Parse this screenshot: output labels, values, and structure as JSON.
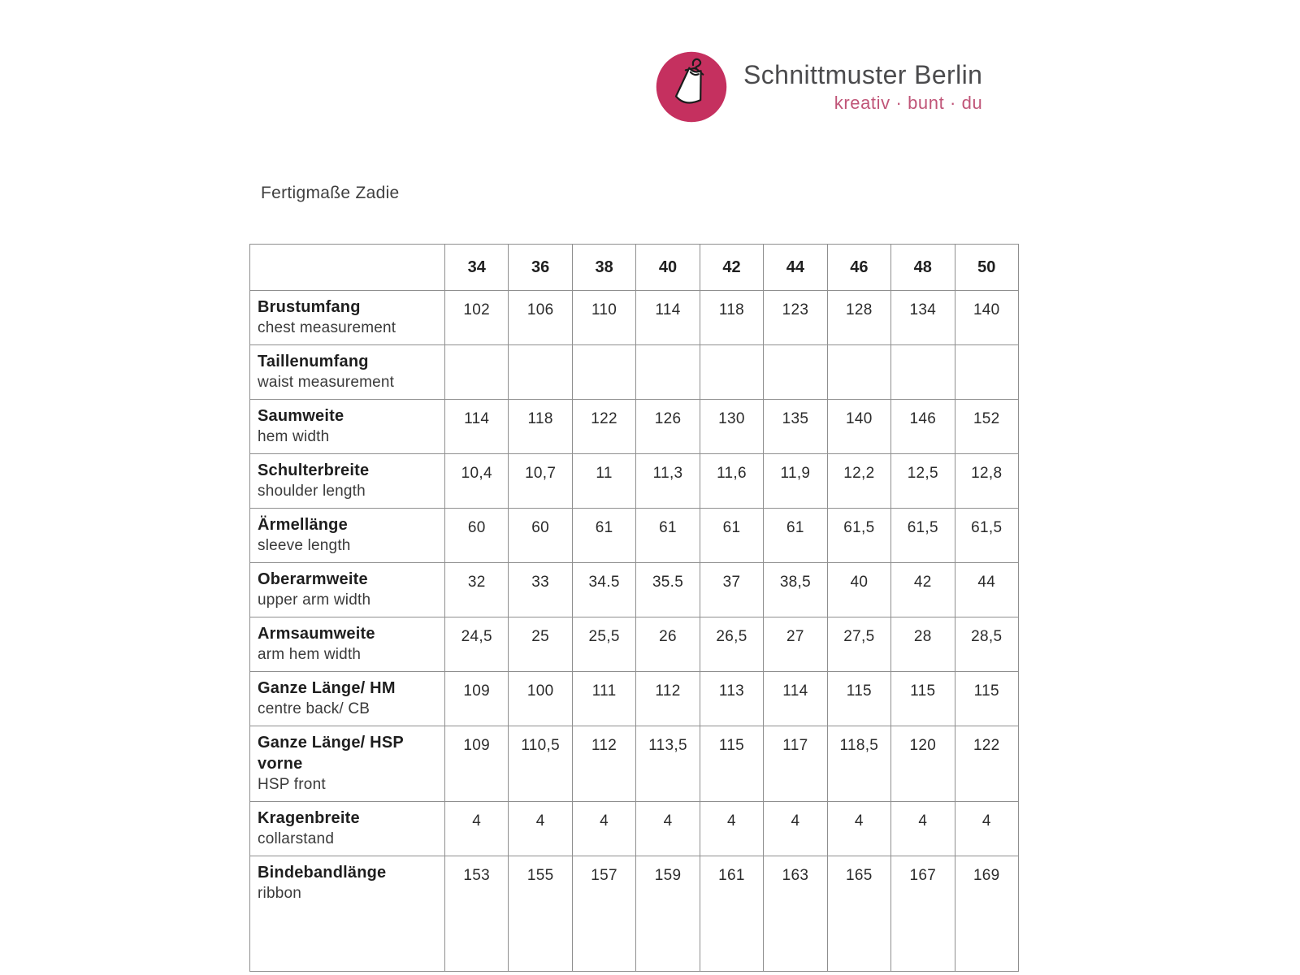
{
  "brand": {
    "name": "Schnittmuster Berlin",
    "tagline": "kreativ · bunt · du",
    "colors": {
      "logo_circle": "#c5305f",
      "tagline_text": "#c05578",
      "name_text": "#4b4b4d"
    }
  },
  "page_title": "Fertigmaße Zadie",
  "size_table": {
    "sizes": [
      "34",
      "36",
      "38",
      "40",
      "42",
      "44",
      "46",
      "48",
      "50"
    ],
    "rows": [
      {
        "label_de": "Brustumfang",
        "label_en": "chest measurement",
        "values": [
          "102",
          "106",
          "110",
          "114",
          "118",
          "123",
          "128",
          "134",
          "140"
        ]
      },
      {
        "label_de": "Taillenumfang",
        "label_en": "waist measurement",
        "values": [
          "",
          "",
          "",
          "",
          "",
          "",
          "",
          "",
          ""
        ]
      },
      {
        "label_de": "Saumweite",
        "label_en": "hem width",
        "values": [
          "114",
          "118",
          "122",
          "126",
          "130",
          "135",
          "140",
          "146",
          "152"
        ]
      },
      {
        "label_de": "Schulterbreite",
        "label_en": "shoulder length",
        "values": [
          "10,4",
          "10,7",
          "11",
          "11,3",
          "11,6",
          "11,9",
          "12,2",
          "12,5",
          "12,8"
        ]
      },
      {
        "label_de": "Ärmellänge",
        "label_en": "sleeve length",
        "values": [
          "60",
          "60",
          "61",
          "61",
          "61",
          "61",
          "61,5",
          "61,5",
          "61,5"
        ]
      },
      {
        "label_de": "Oberarmweite",
        "label_en": "upper arm width",
        "values": [
          "32",
          "33",
          "34.5",
          "35.5",
          "37",
          "38,5",
          "40",
          "42",
          "44"
        ]
      },
      {
        "label_de": "Armsaumweite",
        "label_en": "arm hem width",
        "values": [
          "24,5",
          "25",
          "25,5",
          "26",
          "26,5",
          "27",
          "27,5",
          "28",
          "28,5"
        ]
      },
      {
        "label_de": "Ganze Länge/ HM",
        "label_en": "centre back/ CB",
        "values": [
          "109",
          "100",
          "111",
          "112",
          "113",
          "114",
          "115",
          "115",
          "115"
        ]
      },
      {
        "label_de": "Ganze Länge/ HSP\nvorne",
        "label_en": "HSP front",
        "values": [
          "109",
          "110,5",
          "112",
          "113,5",
          "115",
          "117",
          "118,5",
          "120",
          "122"
        ]
      },
      {
        "label_de": "Kragenbreite",
        "label_en": "collarstand",
        "values": [
          "4",
          "4",
          "4",
          "4",
          "4",
          "4",
          "4",
          "4",
          "4"
        ]
      },
      {
        "label_de": "Bindebandlänge",
        "label_en": "ribbon",
        "values": [
          "153",
          "155",
          "157",
          "159",
          "161",
          "163",
          "165",
          "167",
          "169"
        ]
      }
    ]
  }
}
